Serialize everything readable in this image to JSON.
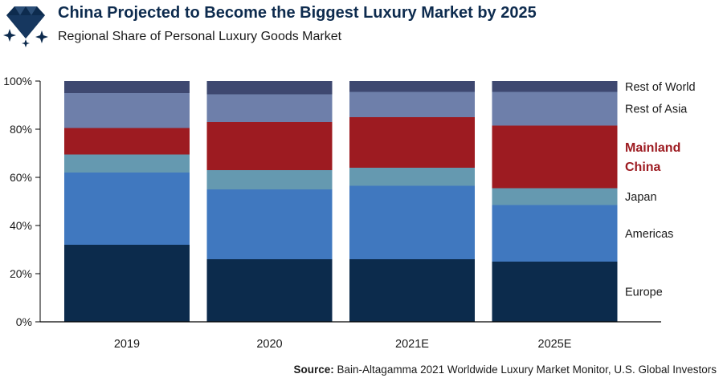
{
  "header": {
    "title": "China Projected to Become the Biggest Luxury Market by 2025",
    "subtitle": "Regional Share of Personal Luxury Goods Market",
    "logo_icon": "diamond-sparkle-icon"
  },
  "source": {
    "label": "Source:",
    "text": " Bain-Altagamma 2021 Worldwide Luxury Market Monitor, U.S. Global Investors"
  },
  "chart_data": {
    "type": "bar",
    "stacked": true,
    "categories": [
      "2019",
      "2020",
      "2021E",
      "2025E"
    ],
    "ylim": [
      0,
      100
    ],
    "ytick_labels": [
      "0%",
      "20%",
      "40%",
      "60%",
      "80%",
      "100%"
    ],
    "ytick_values": [
      0,
      20,
      40,
      60,
      80,
      100
    ],
    "legend_placement": "right",
    "series": [
      {
        "name": "Europe",
        "color": "#0c2b4c",
        "values": [
          32,
          26,
          26,
          25
        ]
      },
      {
        "name": "Americas",
        "color": "#4078bf",
        "values": [
          30,
          29,
          30.5,
          23.5
        ]
      },
      {
        "name": "Japan",
        "color": "#6599b0",
        "values": [
          7.5,
          8,
          7.5,
          7
        ]
      },
      {
        "name": "Mainland China",
        "color": "#9d1b21",
        "values": [
          11,
          20,
          21,
          26
        ],
        "highlight": true,
        "label_lines": [
          "Mainland",
          "China"
        ]
      },
      {
        "name": "Rest of Asia",
        "color": "#6e7faa",
        "values": [
          14.5,
          11.5,
          10.5,
          14
        ]
      },
      {
        "name": "Rest of World",
        "color": "#3e4870",
        "values": [
          5,
          5.5,
          4.5,
          4.5
        ]
      }
    ]
  }
}
